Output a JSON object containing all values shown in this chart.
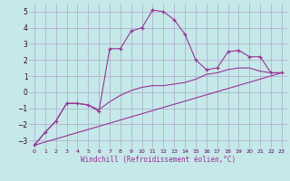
{
  "xlabel": "Windchill (Refroidissement éolien,°C)",
  "background_color": "#c5e8e8",
  "grid_color": "#aaaacc",
  "line_color": "#993399",
  "xlim": [
    -0.5,
    23.5
  ],
  "ylim": [
    -3.5,
    5.5
  ],
  "yticks": [
    -3,
    -2,
    -1,
    0,
    1,
    2,
    3,
    4,
    5
  ],
  "xticks": [
    0,
    1,
    2,
    3,
    4,
    5,
    6,
    7,
    8,
    9,
    10,
    11,
    12,
    13,
    14,
    15,
    16,
    17,
    18,
    19,
    20,
    21,
    22,
    23
  ],
  "series1_x": [
    0,
    1,
    2,
    3,
    4,
    5,
    6,
    7,
    8,
    9,
    10,
    11,
    12,
    13,
    14,
    15,
    16,
    17,
    18,
    19,
    20,
    21,
    22,
    23
  ],
  "series1_y": [
    -3.3,
    -2.5,
    -1.8,
    -0.7,
    -0.7,
    -0.8,
    -1.2,
    2.7,
    2.7,
    3.8,
    4.0,
    5.1,
    5.0,
    4.5,
    3.6,
    2.0,
    1.4,
    1.5,
    2.5,
    2.6,
    2.2,
    2.2,
    1.2,
    1.2
  ],
  "series2_x": [
    0,
    1,
    2,
    3,
    4,
    5,
    6,
    7,
    8,
    9,
    10,
    11,
    12,
    13,
    14,
    15,
    16,
    17,
    18,
    19,
    20,
    21,
    22,
    23
  ],
  "series2_y": [
    -3.3,
    -2.5,
    -1.8,
    -0.7,
    -0.7,
    -0.8,
    -1.1,
    -0.6,
    -0.2,
    0.1,
    0.3,
    0.4,
    0.4,
    0.5,
    0.6,
    0.8,
    1.1,
    1.2,
    1.4,
    1.5,
    1.5,
    1.3,
    1.2,
    1.2
  ],
  "series3_x": [
    0,
    23
  ],
  "series3_y": [
    -3.3,
    1.2
  ]
}
